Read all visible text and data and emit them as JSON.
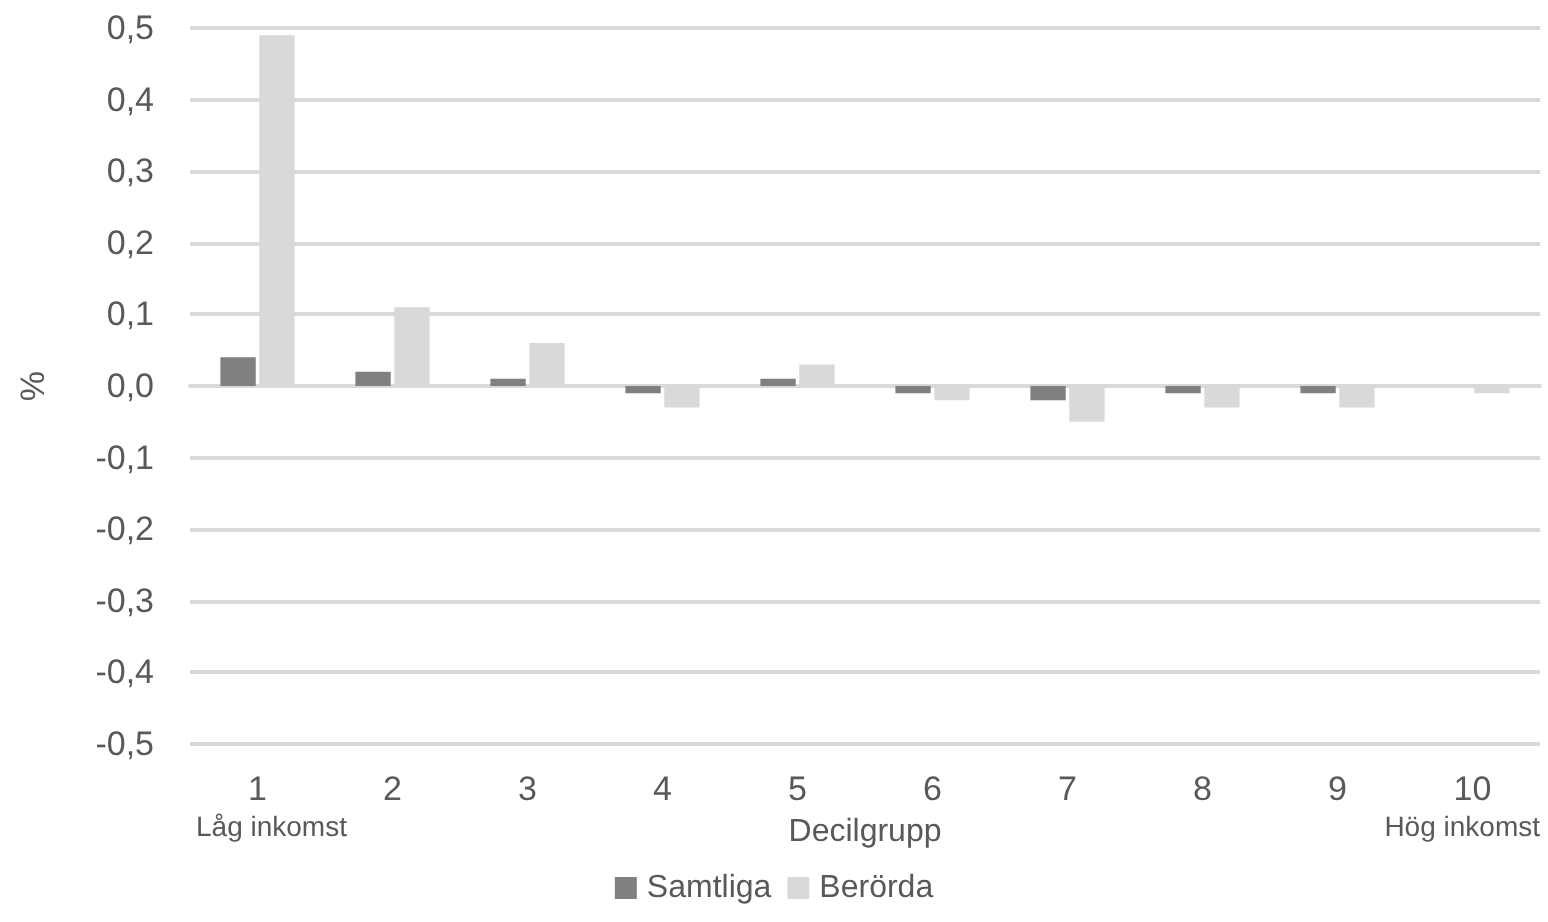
{
  "chart_data": {
    "type": "bar",
    "ylabel": "%",
    "xlabel": "Decilgrupp",
    "categories": [
      "1",
      "2",
      "3",
      "4",
      "5",
      "6",
      "7",
      "8",
      "9",
      "10"
    ],
    "series": [
      {
        "name": "Samtliga",
        "color": "#808080",
        "values": [
          0.04,
          0.02,
          0.01,
          -0.01,
          0.01,
          -0.01,
          -0.02,
          -0.01,
          -0.01,
          0
        ]
      },
      {
        "name": "Berörda",
        "color": "#d9d9d9",
        "values": [
          0.49,
          0.11,
          0.06,
          -0.03,
          0.03,
          -0.02,
          -0.05,
          -0.03,
          -0.03,
          -0.01
        ]
      }
    ],
    "ylim": [
      -0.5,
      0.5
    ],
    "yticks": [
      {
        "value": -0.5,
        "label": "-0,5"
      },
      {
        "value": -0.4,
        "label": "-0,4"
      },
      {
        "value": -0.3,
        "label": "-0,3"
      },
      {
        "value": -0.2,
        "label": "-0,2"
      },
      {
        "value": -0.1,
        "label": "-0,1"
      },
      {
        "value": 0,
        "label": "0,0"
      },
      {
        "value": 0.1,
        "label": "0,1"
      },
      {
        "value": 0.2,
        "label": "0,2"
      },
      {
        "value": 0.3,
        "label": "0,3"
      },
      {
        "value": 0.4,
        "label": "0,4"
      },
      {
        "value": 0.5,
        "label": "0,5"
      }
    ],
    "grid": "y",
    "legend": "bottom",
    "annotations": [
      "Låg inkomst",
      "Hög inkomst"
    ]
  }
}
